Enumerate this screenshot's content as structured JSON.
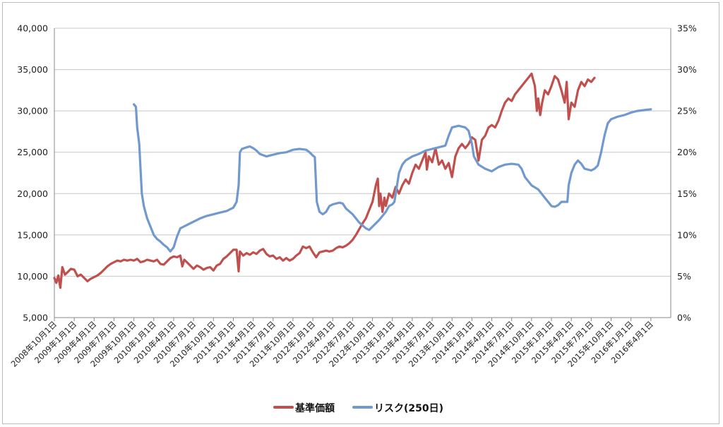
{
  "chart_data": {
    "type": "line",
    "left_axis": {
      "min": 5000,
      "max": 40000,
      "step": 5000,
      "tick_labels": [
        "5,000",
        "10,000",
        "15,000",
        "20,000",
        "25,000",
        "30,000",
        "35,000",
        "40,000"
      ]
    },
    "right_axis": {
      "min": 0,
      "max": 35,
      "step": 5,
      "tick_labels": [
        "0%",
        "5%",
        "10%",
        "15%",
        "20%",
        "25%",
        "30%",
        "35%"
      ]
    },
    "x_range": [
      0,
      93
    ],
    "x_tick_months": [
      0,
      3,
      6,
      9,
      12,
      15,
      18,
      21,
      24,
      27,
      30,
      33,
      36,
      39,
      42,
      45,
      48,
      51,
      54,
      57,
      60,
      63,
      66,
      69,
      72,
      75,
      78,
      81,
      84,
      87,
      90
    ],
    "x_tick_labels": [
      "2008年10月1日",
      "2009年1月1日",
      "2009年4月1日",
      "2009年7月1日",
      "2009年10月1日",
      "2010年1月1日",
      "2010年4月1日",
      "2010年7月1日",
      "2010年10月1日",
      "2011年1月1日",
      "2011年4月1日",
      "2011年7月1日",
      "2011年10月1日",
      "2012年1月1日",
      "2012年4月1日",
      "2012年7月1日",
      "2012年10月1日",
      "2013年1月1日",
      "2013年4月1日",
      "2013年7月1日",
      "2013年10月1日",
      "2014年1月1日",
      "2014年4月1日",
      "2014年7月1日",
      "2014年10月1日",
      "2015年1月1日",
      "2015年4月1日",
      "2015年7月1日",
      "2015年10月1日",
      "2016年1月1日",
      "2016年4月1日"
    ],
    "grid": true,
    "legend_position": "bottom",
    "series": [
      {
        "name": "基準価額",
        "axis": "left",
        "color": "#c0504d",
        "points": [
          [
            0,
            9800
          ],
          [
            0.3,
            9200
          ],
          [
            0.6,
            10100
          ],
          [
            0.9,
            8600
          ],
          [
            1.2,
            11100
          ],
          [
            1.6,
            10200
          ],
          [
            2.0,
            10500
          ],
          [
            2.5,
            10900
          ],
          [
            3.0,
            10800
          ],
          [
            3.5,
            10000
          ],
          [
            4.0,
            10200
          ],
          [
            4.5,
            9800
          ],
          [
            5.0,
            9400
          ],
          [
            5.5,
            9700
          ],
          [
            6.0,
            9900
          ],
          [
            6.5,
            10100
          ],
          [
            7.0,
            10400
          ],
          [
            7.5,
            10800
          ],
          [
            8.0,
            11200
          ],
          [
            8.5,
            11500
          ],
          [
            9.0,
            11700
          ],
          [
            9.5,
            11900
          ],
          [
            10.0,
            11800
          ],
          [
            10.5,
            12000
          ],
          [
            11.0,
            11900
          ],
          [
            11.5,
            12000
          ],
          [
            12.0,
            11900
          ],
          [
            12.5,
            12100
          ],
          [
            13.0,
            11700
          ],
          [
            13.5,
            11800
          ],
          [
            14.0,
            12000
          ],
          [
            14.5,
            11900
          ],
          [
            15.0,
            11800
          ],
          [
            15.5,
            12000
          ],
          [
            16.0,
            11500
          ],
          [
            16.5,
            11400
          ],
          [
            17.0,
            11800
          ],
          [
            17.5,
            12200
          ],
          [
            18.0,
            12400
          ],
          [
            18.5,
            12300
          ],
          [
            19.0,
            12500
          ],
          [
            19.3,
            11200
          ],
          [
            19.6,
            12000
          ],
          [
            20.0,
            11700
          ],
          [
            20.5,
            11300
          ],
          [
            21.0,
            10900
          ],
          [
            21.5,
            11300
          ],
          [
            22.0,
            11100
          ],
          [
            22.5,
            10800
          ],
          [
            23.0,
            11000
          ],
          [
            23.5,
            11100
          ],
          [
            24.0,
            10700
          ],
          [
            24.5,
            11300
          ],
          [
            25.0,
            11500
          ],
          [
            25.5,
            12100
          ],
          [
            26.0,
            12400
          ],
          [
            26.5,
            12800
          ],
          [
            27.0,
            13200
          ],
          [
            27.5,
            13200
          ],
          [
            27.8,
            10600
          ],
          [
            28.0,
            13000
          ],
          [
            28.5,
            12500
          ],
          [
            29.0,
            12800
          ],
          [
            29.5,
            12600
          ],
          [
            30.0,
            12900
          ],
          [
            30.5,
            12700
          ],
          [
            31.0,
            13100
          ],
          [
            31.5,
            13300
          ],
          [
            32.0,
            12700
          ],
          [
            32.5,
            12400
          ],
          [
            33.0,
            12500
          ],
          [
            33.5,
            12100
          ],
          [
            34.0,
            12300
          ],
          [
            34.5,
            11900
          ],
          [
            35.0,
            12200
          ],
          [
            35.5,
            11900
          ],
          [
            36.0,
            12100
          ],
          [
            36.5,
            12500
          ],
          [
            37.0,
            12800
          ],
          [
            37.5,
            13600
          ],
          [
            38.0,
            13400
          ],
          [
            38.5,
            13600
          ],
          [
            39.0,
            12900
          ],
          [
            39.5,
            12300
          ],
          [
            40.0,
            12900
          ],
          [
            40.5,
            13000
          ],
          [
            41.0,
            13100
          ],
          [
            41.5,
            13000
          ],
          [
            42.0,
            13100
          ],
          [
            42.5,
            13400
          ],
          [
            43.0,
            13600
          ],
          [
            43.5,
            13500
          ],
          [
            44.0,
            13700
          ],
          [
            44.5,
            14000
          ],
          [
            45.0,
            14400
          ],
          [
            45.5,
            15000
          ],
          [
            46.0,
            15700
          ],
          [
            46.5,
            16400
          ],
          [
            47.0,
            17000
          ],
          [
            47.5,
            18000
          ],
          [
            48.0,
            19000
          ],
          [
            48.5,
            21000
          ],
          [
            48.8,
            21800
          ],
          [
            49.0,
            18500
          ],
          [
            49.2,
            20000
          ],
          [
            49.5,
            17800
          ],
          [
            49.8,
            19500
          ],
          [
            50.0,
            18500
          ],
          [
            50.5,
            20000
          ],
          [
            51.0,
            19500
          ],
          [
            51.5,
            20800
          ],
          [
            52.0,
            20000
          ],
          [
            52.5,
            21000
          ],
          [
            53.0,
            21700
          ],
          [
            53.5,
            21200
          ],
          [
            54.0,
            22500
          ],
          [
            54.5,
            23500
          ],
          [
            55.0,
            23000
          ],
          [
            55.5,
            24000
          ],
          [
            56.0,
            25000
          ],
          [
            56.2,
            22900
          ],
          [
            56.5,
            24500
          ],
          [
            57.0,
            23800
          ],
          [
            57.5,
            25500
          ],
          [
            58.0,
            23500
          ],
          [
            58.5,
            24000
          ],
          [
            59.0,
            23000
          ],
          [
            59.5,
            23700
          ],
          [
            60.0,
            22000
          ],
          [
            60.5,
            24500
          ],
          [
            61.0,
            25500
          ],
          [
            61.5,
            26000
          ],
          [
            62.0,
            25500
          ],
          [
            62.5,
            26000
          ],
          [
            63.0,
            26800
          ],
          [
            63.5,
            26500
          ],
          [
            64.0,
            24000
          ],
          [
            64.5,
            26500
          ],
          [
            65.0,
            27000
          ],
          [
            65.5,
            28000
          ],
          [
            66.0,
            28300
          ],
          [
            66.5,
            28000
          ],
          [
            67.0,
            28800
          ],
          [
            67.5,
            30000
          ],
          [
            68.0,
            31000
          ],
          [
            68.5,
            31500
          ],
          [
            69.0,
            31200
          ],
          [
            69.5,
            32000
          ],
          [
            70.0,
            32500
          ],
          [
            70.5,
            33000
          ],
          [
            71.0,
            33500
          ],
          [
            71.5,
            34000
          ],
          [
            72.0,
            34500
          ],
          [
            72.5,
            33000
          ],
          [
            72.8,
            30000
          ],
          [
            73.0,
            31500
          ],
          [
            73.3,
            29500
          ],
          [
            73.6,
            31000
          ],
          [
            74.0,
            32500
          ],
          [
            74.5,
            32000
          ],
          [
            75.0,
            33000
          ],
          [
            75.5,
            34200
          ],
          [
            76.0,
            33800
          ],
          [
            76.5,
            32500
          ],
          [
            77.0,
            31000
          ],
          [
            77.3,
            33500
          ],
          [
            77.6,
            29000
          ],
          [
            78.0,
            31000
          ],
          [
            78.5,
            30500
          ],
          [
            79.0,
            32500
          ],
          [
            79.5,
            33500
          ],
          [
            80.0,
            33000
          ],
          [
            80.5,
            33800
          ],
          [
            81.0,
            33500
          ],
          [
            81.5,
            34000
          ]
        ]
      },
      {
        "name": "リスク(250日)",
        "axis": "right",
        "color": "#7199cd",
        "points": [
          [
            12.0,
            25.8
          ],
          [
            12.3,
            25.5
          ],
          [
            12.5,
            23.0
          ],
          [
            12.8,
            21.0
          ],
          [
            13.0,
            18.0
          ],
          [
            13.2,
            15.0
          ],
          [
            13.5,
            13.5
          ],
          [
            14.0,
            12.0
          ],
          [
            14.5,
            11.0
          ],
          [
            15.0,
            10.0
          ],
          [
            15.5,
            9.5
          ],
          [
            16.0,
            9.2
          ],
          [
            16.5,
            8.8
          ],
          [
            17.0,
            8.5
          ],
          [
            17.5,
            8.0
          ],
          [
            18.0,
            8.5
          ],
          [
            18.5,
            9.8
          ],
          [
            19.0,
            10.8
          ],
          [
            20.0,
            11.2
          ],
          [
            21.0,
            11.6
          ],
          [
            22.0,
            12.0
          ],
          [
            23.0,
            12.3
          ],
          [
            24.0,
            12.5
          ],
          [
            25.0,
            12.7
          ],
          [
            26.0,
            12.9
          ],
          [
            27.0,
            13.3
          ],
          [
            27.5,
            14.0
          ],
          [
            27.8,
            16.0
          ],
          [
            28.0,
            20.0
          ],
          [
            28.3,
            20.4
          ],
          [
            29.0,
            20.6
          ],
          [
            29.5,
            20.7
          ],
          [
            30.0,
            20.5
          ],
          [
            30.5,
            20.2
          ],
          [
            31.0,
            19.8
          ],
          [
            32.0,
            19.5
          ],
          [
            33.0,
            19.7
          ],
          [
            34.0,
            19.9
          ],
          [
            35.0,
            20.0
          ],
          [
            36.0,
            20.3
          ],
          [
            37.0,
            20.4
          ],
          [
            38.0,
            20.3
          ],
          [
            38.5,
            20.0
          ],
          [
            39.0,
            19.6
          ],
          [
            39.3,
            19.4
          ],
          [
            39.6,
            14.0
          ],
          [
            40.0,
            12.8
          ],
          [
            40.5,
            12.5
          ],
          [
            41.0,
            12.8
          ],
          [
            41.5,
            13.5
          ],
          [
            42.0,
            13.7
          ],
          [
            43.0,
            13.9
          ],
          [
            43.5,
            13.8
          ],
          [
            44.0,
            13.2
          ],
          [
            45.0,
            12.5
          ],
          [
            46.0,
            11.5
          ],
          [
            47.0,
            10.8
          ],
          [
            47.5,
            10.6
          ],
          [
            48.0,
            11.0
          ],
          [
            49.0,
            11.8
          ],
          [
            50.0,
            12.8
          ],
          [
            50.5,
            13.5
          ],
          [
            51.0,
            13.7
          ],
          [
            51.3,
            14.0
          ],
          [
            51.6,
            15.5
          ],
          [
            52.0,
            17.5
          ],
          [
            52.5,
            18.5
          ],
          [
            53.0,
            19.0
          ],
          [
            54.0,
            19.5
          ],
          [
            55.0,
            19.8
          ],
          [
            56.0,
            20.2
          ],
          [
            57.0,
            20.4
          ],
          [
            58.0,
            20.6
          ],
          [
            59.0,
            20.8
          ],
          [
            59.5,
            22.0
          ],
          [
            60.0,
            23.0
          ],
          [
            61.0,
            23.2
          ],
          [
            62.0,
            23.0
          ],
          [
            62.5,
            22.6
          ],
          [
            63.0,
            21.0
          ],
          [
            63.3,
            19.5
          ],
          [
            64.0,
            18.5
          ],
          [
            65.0,
            18.0
          ],
          [
            66.0,
            17.7
          ],
          [
            67.0,
            18.2
          ],
          [
            68.0,
            18.5
          ],
          [
            69.0,
            18.6
          ],
          [
            70.0,
            18.5
          ],
          [
            70.5,
            18.0
          ],
          [
            71.0,
            17.0
          ],
          [
            72.0,
            16.0
          ],
          [
            73.0,
            15.5
          ],
          [
            74.0,
            14.5
          ],
          [
            75.0,
            13.5
          ],
          [
            75.5,
            13.4
          ],
          [
            76.0,
            13.6
          ],
          [
            76.5,
            14.0
          ],
          [
            77.0,
            14.0
          ],
          [
            77.4,
            14.0
          ],
          [
            77.6,
            16.0
          ],
          [
            78.0,
            17.5
          ],
          [
            78.5,
            18.5
          ],
          [
            79.0,
            19.0
          ],
          [
            79.5,
            18.6
          ],
          [
            80.0,
            18.0
          ],
          [
            81.0,
            17.8
          ],
          [
            81.5,
            18.0
          ],
          [
            82.0,
            18.4
          ],
          [
            82.5,
            20.0
          ],
          [
            83.0,
            22.0
          ],
          [
            83.5,
            23.5
          ],
          [
            84.0,
            24.0
          ],
          [
            85.0,
            24.3
          ],
          [
            86.0,
            24.5
          ],
          [
            87.0,
            24.8
          ],
          [
            88.0,
            25.0
          ],
          [
            89.0,
            25.1
          ],
          [
            90.0,
            25.2
          ]
        ]
      }
    ]
  }
}
